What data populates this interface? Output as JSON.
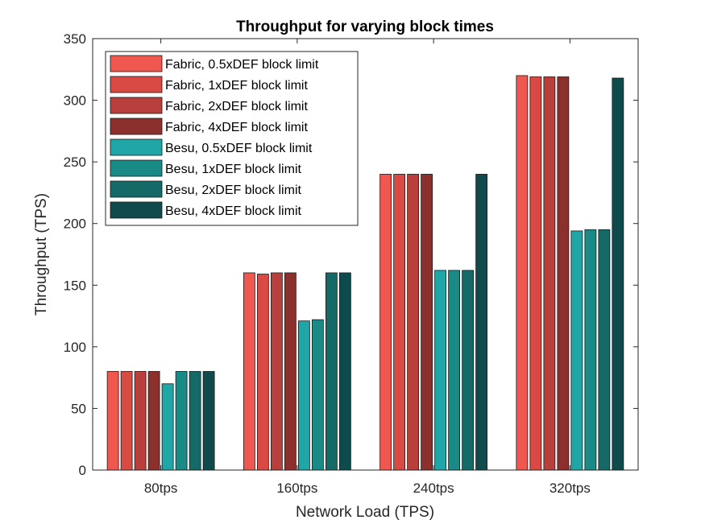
{
  "chart_data": {
    "type": "bar",
    "title": "Throughput for varying block times",
    "xlabel": "Network Load (TPS)",
    "ylabel": "Throughput (TPS)",
    "ylim": [
      0,
      350
    ],
    "yticks": [
      0,
      50,
      100,
      150,
      200,
      250,
      300,
      350
    ],
    "categories": [
      "80tps",
      "160tps",
      "240tps",
      "320tps"
    ],
    "grid": false,
    "legend_position": "top-left",
    "series": [
      {
        "name": "Fabric, 0.5xDEF block limit",
        "color": "#f0574f",
        "values": [
          80,
          160,
          240,
          320
        ]
      },
      {
        "name": "Fabric, 1xDEF block limit",
        "color": "#d94a45",
        "values": [
          80,
          159,
          240,
          319
        ]
      },
      {
        "name": "Fabric, 2xDEF block limit",
        "color": "#b83f3b",
        "values": [
          80,
          160,
          240,
          319
        ]
      },
      {
        "name": "Fabric, 4xDEF block limit",
        "color": "#8c302e",
        "values": [
          80,
          160,
          240,
          319
        ]
      },
      {
        "name": "Besu, 0.5xDEF block limit",
        "color": "#20a6a6",
        "values": [
          70,
          121,
          162,
          194
        ]
      },
      {
        "name": "Besu, 1xDEF block limit",
        "color": "#198a85",
        "values": [
          80,
          122,
          162,
          195
        ]
      },
      {
        "name": "Besu, 2xDEF block limit",
        "color": "#156a68",
        "values": [
          80,
          160,
          162,
          195
        ]
      },
      {
        "name": "Besu, 4xDEF block limit",
        "color": "#0f4a4c",
        "values": [
          80,
          160,
          240,
          318
        ]
      }
    ]
  }
}
